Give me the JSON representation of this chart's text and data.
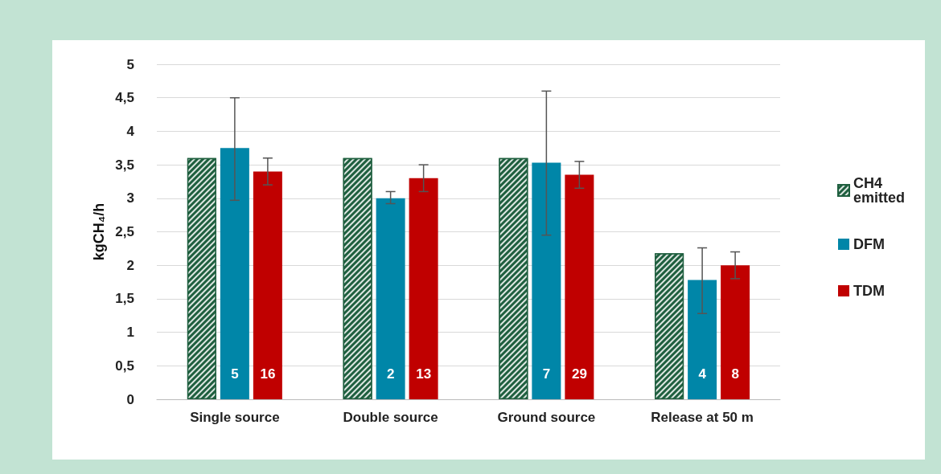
{
  "chart_data": {
    "type": "bar",
    "ylabel": "kgCH₄/h",
    "categories": [
      "Single source",
      "Double source",
      "Ground source",
      "Release at 50 m"
    ],
    "series": [
      {
        "name": "CH4 emitted",
        "color": "#1f5f3f",
        "values": [
          3.6,
          3.6,
          3.6,
          2.18
        ]
      },
      {
        "name": "DFM",
        "color": "#0086a8",
        "values": [
          3.75,
          3.0,
          3.53,
          1.78
        ],
        "errors": [
          [
            2.97,
            4.5
          ],
          [
            2.92,
            3.1
          ],
          [
            2.45,
            4.6
          ],
          [
            1.28,
            2.26
          ]
        ]
      },
      {
        "name": "TDM",
        "color": "#c00000",
        "values": [
          3.4,
          3.3,
          3.35,
          2.0
        ],
        "errors": [
          [
            3.2,
            3.6
          ],
          [
            3.1,
            3.5
          ],
          [
            3.15,
            3.55
          ],
          [
            1.8,
            2.2
          ]
        ]
      }
    ],
    "ylim": [
      0,
      5
    ],
    "yticks": [
      0,
      {
        "value": 0.5,
        "label": "0,5"
      },
      1,
      {
        "value": 1.5,
        "label": "1,5"
      },
      2,
      {
        "value": 2.5,
        "label": "2,5"
      },
      3,
      {
        "value": 3.5,
        "label": "3,5"
      },
      4,
      {
        "value": 4.5,
        "label": "4,5"
      },
      5
    ],
    "annotations": [
      "5",
      "16",
      "2",
      "13",
      "7",
      "29",
      "4",
      "8"
    ],
    "grid": "y",
    "legend": "right"
  }
}
